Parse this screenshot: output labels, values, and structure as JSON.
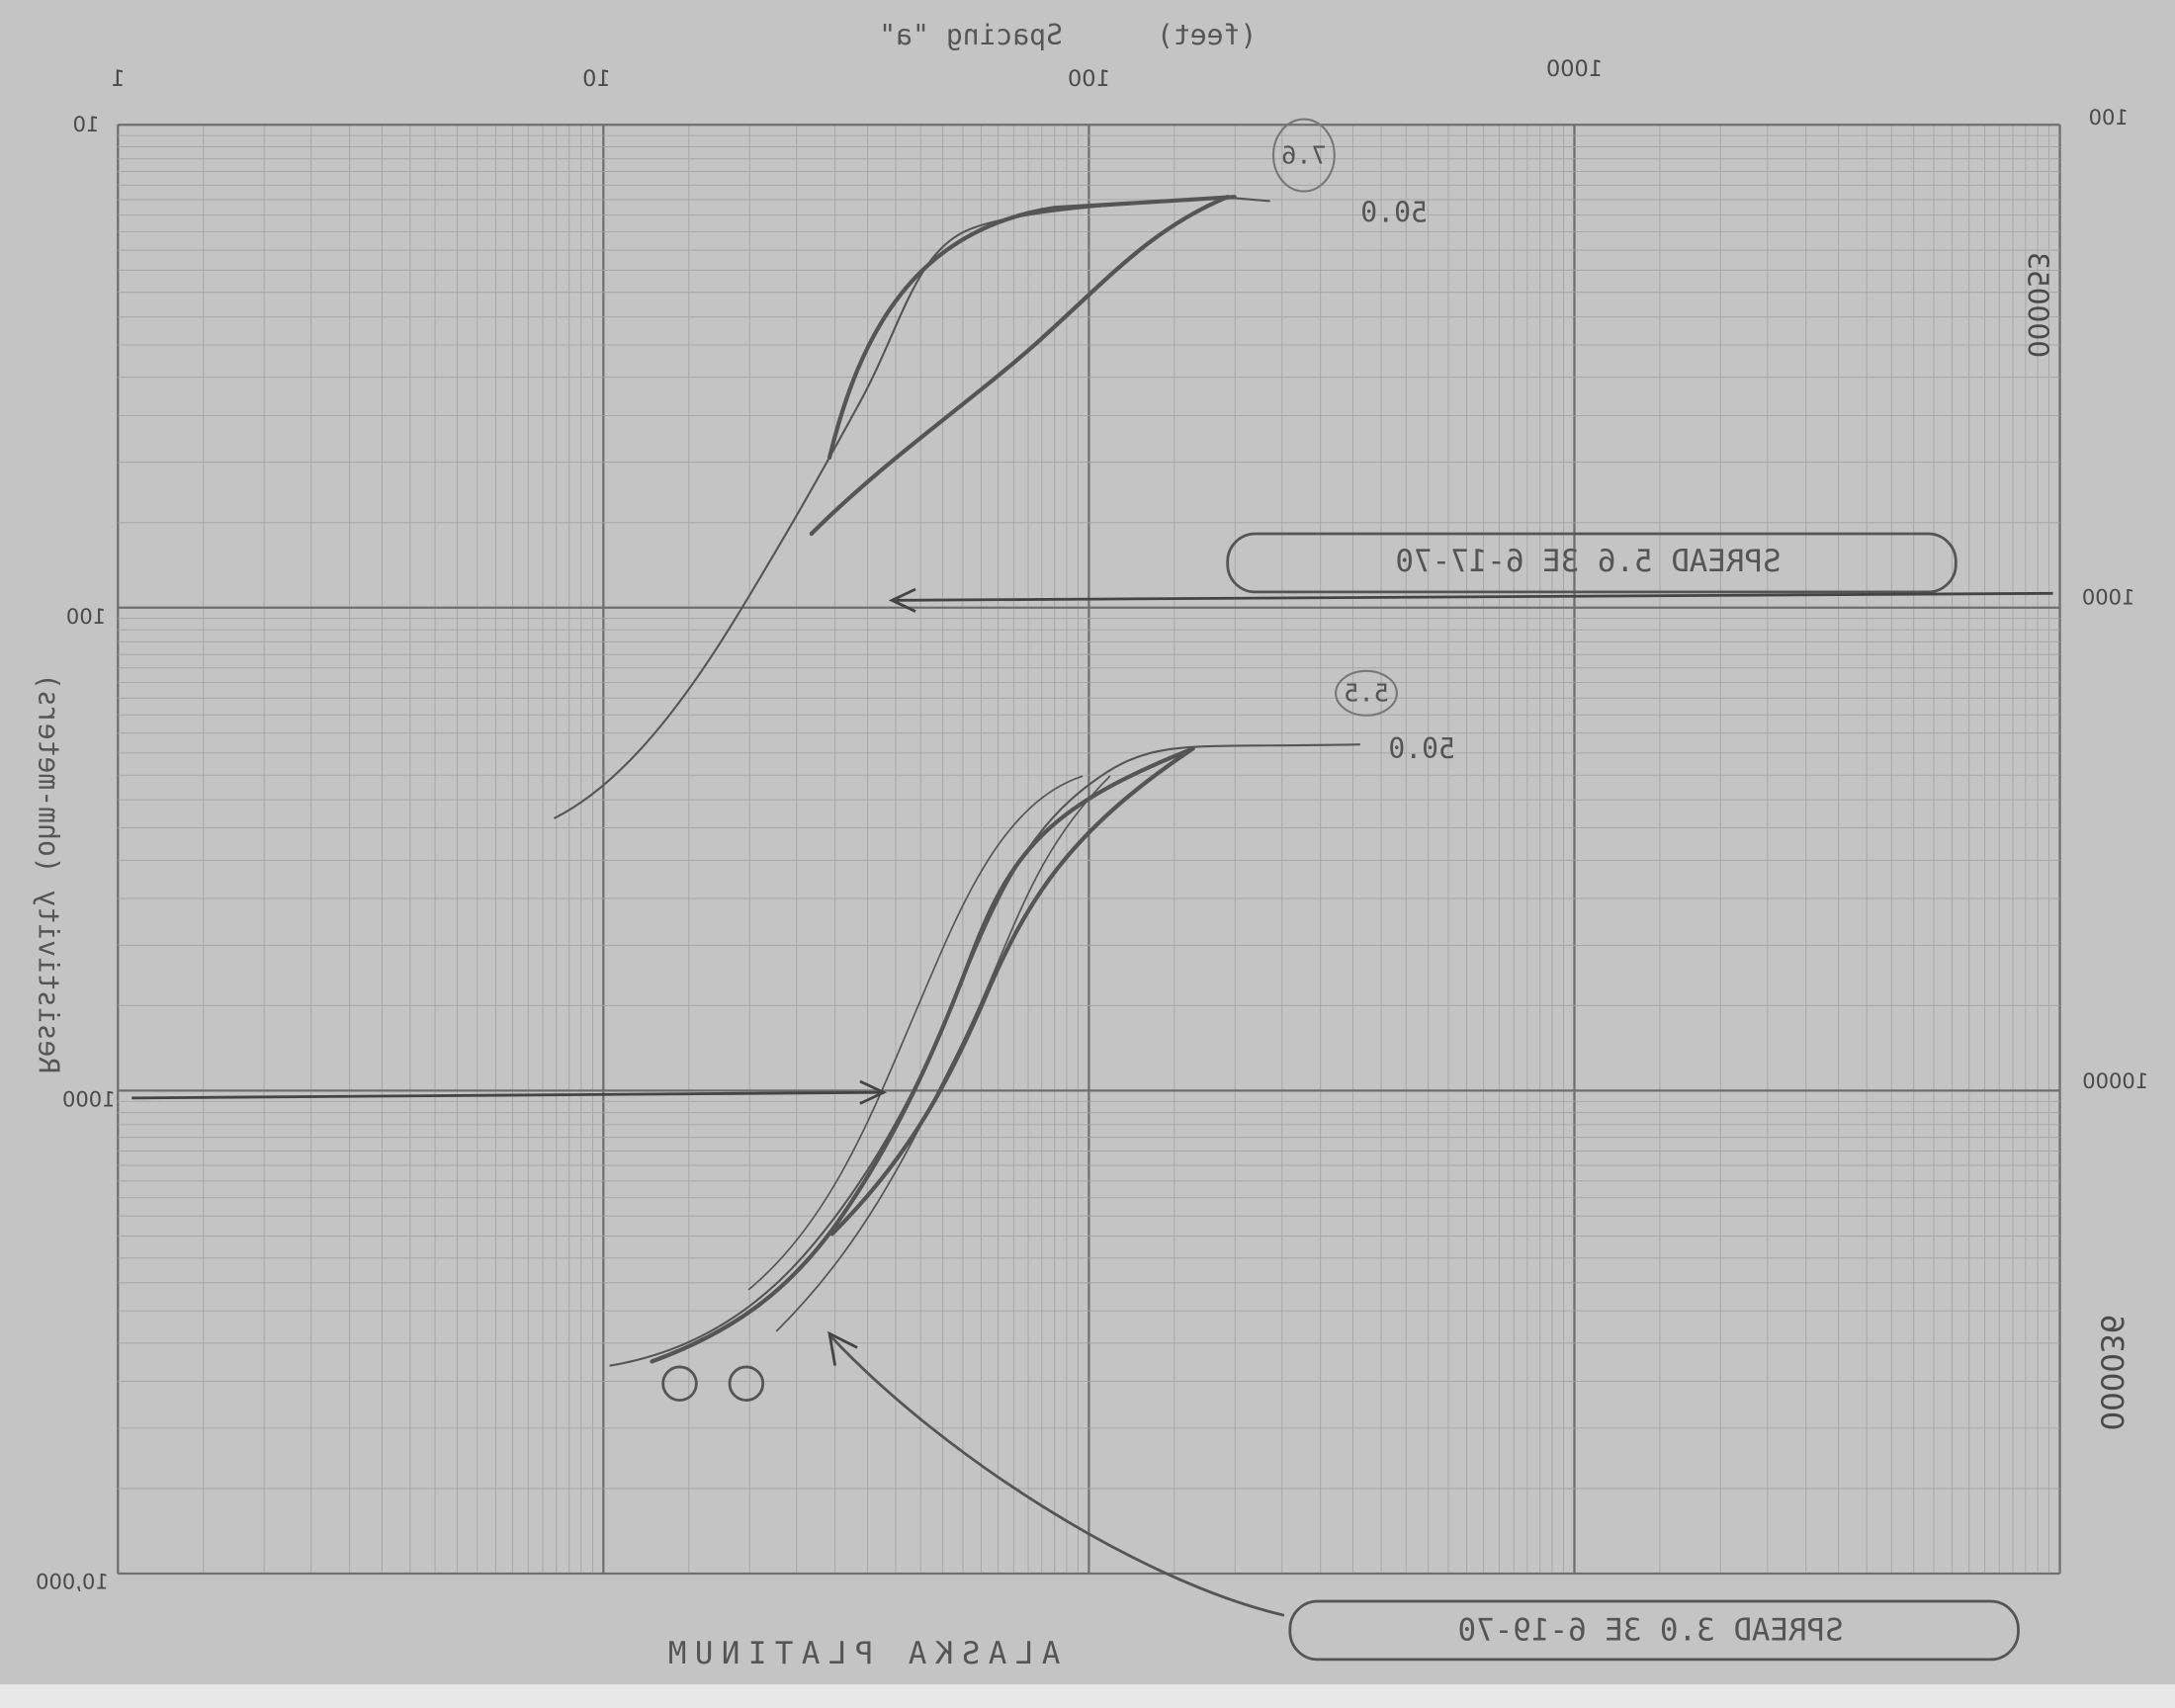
{
  "header": {
    "units": "(feet)",
    "axis_title": "Spacing \"a\""
  },
  "top_axis_labels": [
    "1",
    "10",
    "100",
    "1000"
  ],
  "left_axis_labels": [
    "10",
    "100",
    "1000",
    "10,000"
  ],
  "right_axis_labels": [
    "100",
    "1000",
    "10000"
  ],
  "y_axis_title": "Resistivity (ohm-meters)",
  "footer": "ALASKA PLATINUM",
  "annotations": [
    "SPREAD 5.6 3E 6-17-70",
    "SPREAD 3.0 3E 6-19-70",
    "50.0",
    "50.0",
    "7.6",
    "5.5"
  ],
  "serials": [
    "000053",
    "000036"
  ]
}
